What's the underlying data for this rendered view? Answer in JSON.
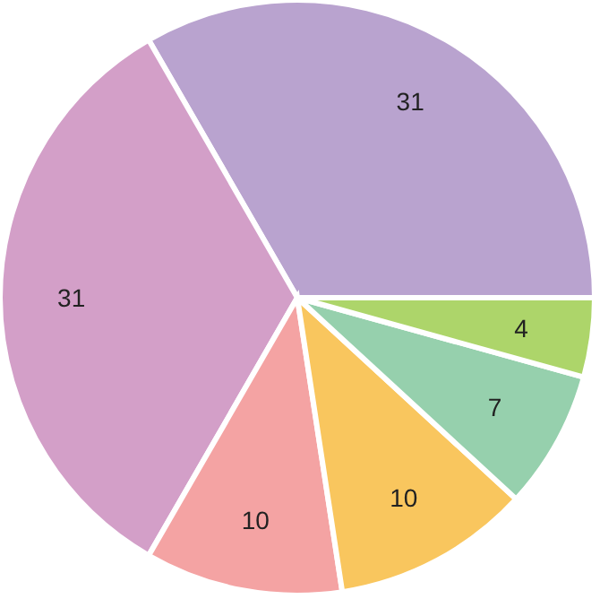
{
  "chart_data": {
    "type": "pie",
    "categories": [
      null,
      null,
      null,
      null,
      null,
      null
    ],
    "values": [
      31,
      31,
      10,
      10,
      7,
      4
    ],
    "colors": [
      "#b9a3cf",
      "#d39fc8",
      "#f4a3a3",
      "#f9c65e",
      "#96d0ad",
      "#add56a"
    ],
    "data_labels": true,
    "legend": false
  }
}
